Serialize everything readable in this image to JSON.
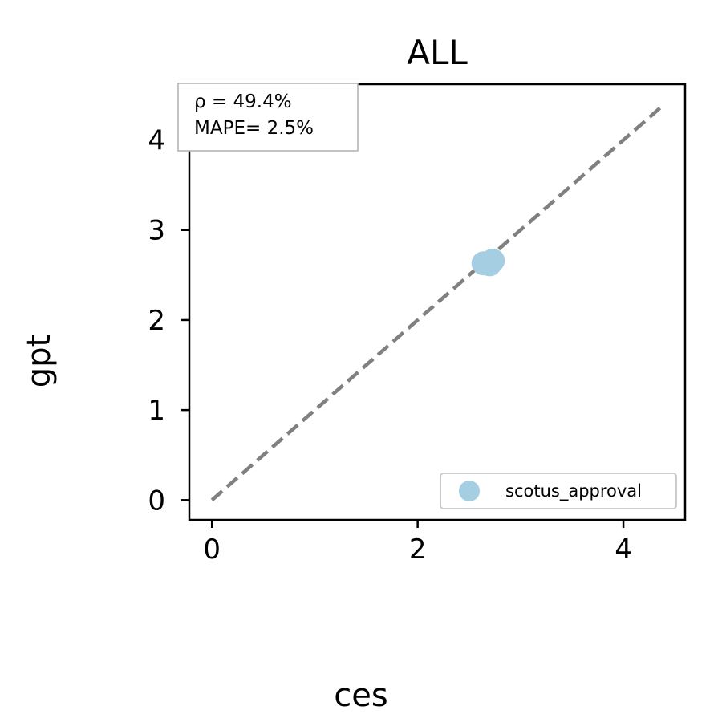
{
  "chart_data": {
    "type": "scatter",
    "title": "ALL",
    "xlabel": "ces",
    "ylabel": "gpt",
    "xlim": [
      -0.22,
      4.6
    ],
    "ylim": [
      -0.22,
      4.62
    ],
    "xticks": [
      0,
      2,
      4
    ],
    "yticks": [
      0,
      1,
      2,
      3,
      4
    ],
    "series": [
      {
        "name": "scotus_approval",
        "color": "#a6cee3",
        "points": [
          {
            "x": 2.64,
            "y": 2.63
          },
          {
            "x": 2.7,
            "y": 2.62
          },
          {
            "x": 2.73,
            "y": 2.66
          }
        ]
      }
    ],
    "reference_line": {
      "x": [
        0,
        4.4
      ],
      "y": [
        0,
        4.4
      ],
      "style": "dashed",
      "color": "#808080"
    },
    "annotations": [
      "ρ = 49.4%",
      "MAPE= 2.5%"
    ],
    "legend_position": "lower-right",
    "grid": false
  }
}
